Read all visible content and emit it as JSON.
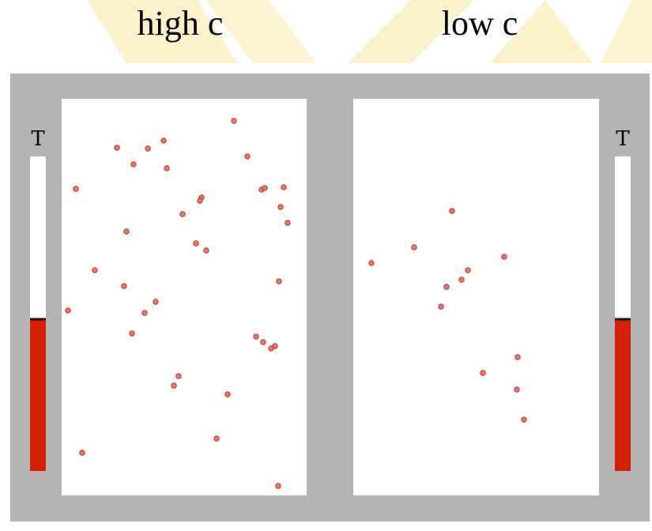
{
  "panels": [
    {
      "label": "high c",
      "thermometer": "T"
    },
    {
      "label": "low c",
      "thermometer": "T"
    }
  ]
}
